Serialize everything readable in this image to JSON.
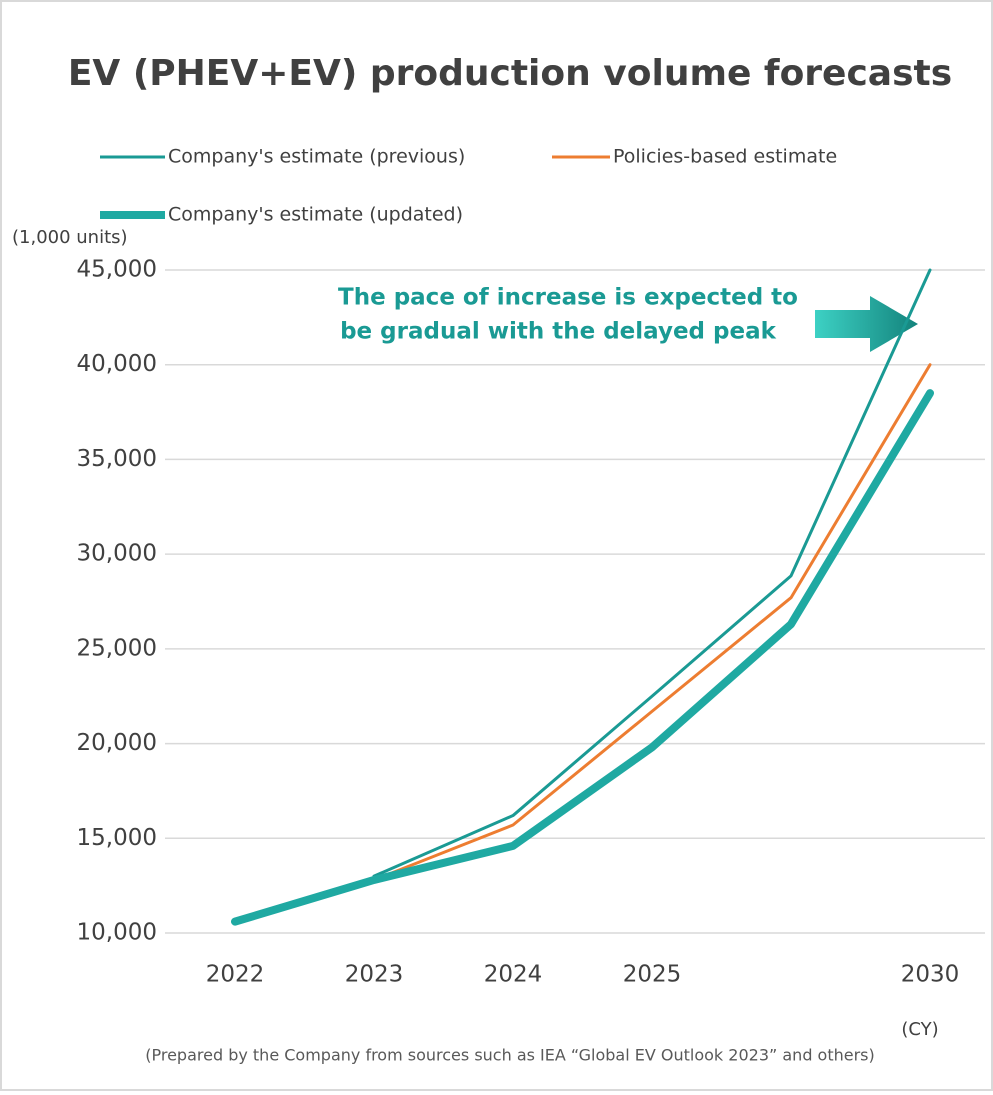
{
  "chart_data": {
    "type": "line",
    "title": "EV (PHEV+EV) production volume forecasts",
    "y_unit_label": "(1,000 units)",
    "x_unit_label": "(CY)",
    "annotation": [
      "The pace of increase is expected to",
      "be gradual with the delayed peak"
    ],
    "footnote": "(Prepared by the Company from sources such as IEA “Global EV Outlook 2023” and others)",
    "categories": [
      "2022",
      "2023",
      "2024",
      "2025",
      null,
      "2030"
    ],
    "series": [
      {
        "name": "Company's estimate (previous)",
        "color": "#1a9a94",
        "width": 3,
        "values": [
          null,
          13000,
          16200,
          22500,
          28850,
          45000
        ]
      },
      {
        "name": "Policies-based estimate",
        "color": "#ed7d31",
        "width": 3,
        "values": [
          null,
          12800,
          15700,
          21700,
          27700,
          40000
        ]
      },
      {
        "name": "Company's estimate (updated)",
        "color": "#1fa9a2",
        "width": 8,
        "values": [
          10600,
          12800,
          14600,
          19800,
          26300,
          38500
        ]
      }
    ],
    "ylim": [
      10000,
      45000
    ],
    "yticks": [
      {
        "value": 10000,
        "label": "10,000"
      },
      {
        "value": 15000,
        "label": "15,000"
      },
      {
        "value": 20000,
        "label": "20,000"
      },
      {
        "value": 25000,
        "label": "25,000"
      },
      {
        "value": 30000,
        "label": "30,000"
      },
      {
        "value": 35000,
        "label": "35,000"
      },
      {
        "value": 40000,
        "label": "40,000"
      },
      {
        "value": 45000,
        "label": "45,000"
      }
    ],
    "grid": true
  }
}
